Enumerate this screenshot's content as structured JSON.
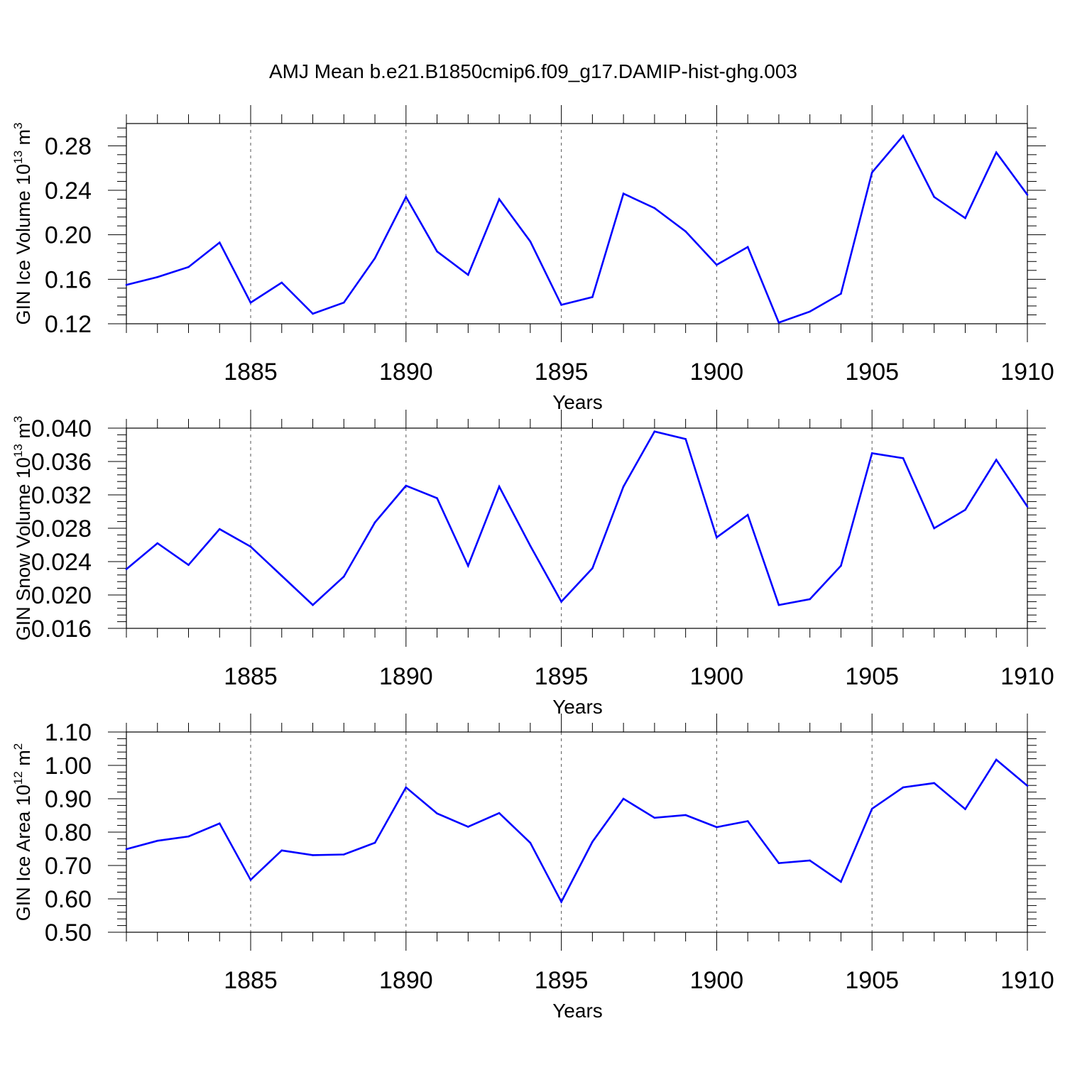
{
  "title": "AMJ Mean b.e21.B1850cmip6.f09_g17.DAMIP-hist-ghg.003",
  "chart_data": [
    {
      "type": "line",
      "ylabel": {
        "base": "GIN Ice Volume 10",
        "exponent": "13",
        "unit": " m",
        "unit_exponent": "3"
      },
      "xlabel": "Years",
      "xlim": [
        1881,
        1910
      ],
      "ylim": [
        0.12,
        0.3
      ],
      "xticks": [
        1885,
        1890,
        1895,
        1900,
        1905,
        1910
      ],
      "yticks": [
        0.12,
        0.16,
        0.2,
        0.24,
        0.28
      ],
      "ytick_labels": [
        "0.12",
        "0.16",
        "0.20",
        "0.24",
        "0.28"
      ],
      "color": "#0000ff",
      "x": [
        1881,
        1882,
        1883,
        1884,
        1885,
        1886,
        1887,
        1888,
        1889,
        1890,
        1891,
        1892,
        1893,
        1894,
        1895,
        1896,
        1897,
        1898,
        1899,
        1900,
        1901,
        1902,
        1903,
        1904,
        1905,
        1906,
        1907,
        1908,
        1909,
        1910
      ],
      "values": [
        0.155,
        0.162,
        0.171,
        0.193,
        0.139,
        0.157,
        0.129,
        0.139,
        0.179,
        0.234,
        0.185,
        0.164,
        0.232,
        0.194,
        0.137,
        0.144,
        0.237,
        0.224,
        0.203,
        0.173,
        0.189,
        0.121,
        0.131,
        0.147,
        0.256,
        0.289,
        0.234,
        0.215,
        0.274,
        0.236
      ]
    },
    {
      "type": "line",
      "ylabel": {
        "base": "GIN Snow Volume 10",
        "exponent": "13",
        "unit": " m",
        "unit_exponent": "3"
      },
      "xlabel": "Years",
      "xlim": [
        1881,
        1910
      ],
      "ylim": [
        0.016,
        0.04
      ],
      "xticks": [
        1885,
        1890,
        1895,
        1900,
        1905,
        1910
      ],
      "yticks": [
        0.016,
        0.02,
        0.024,
        0.028,
        0.032,
        0.036,
        0.04
      ],
      "ytick_labels": [
        "0.016",
        "0.020",
        "0.024",
        "0.028",
        "0.032",
        "0.036",
        "0.040"
      ],
      "color": "#0000ff",
      "x": [
        1881,
        1882,
        1883,
        1884,
        1885,
        1886,
        1887,
        1888,
        1889,
        1890,
        1891,
        1892,
        1893,
        1894,
        1895,
        1896,
        1897,
        1898,
        1899,
        1900,
        1901,
        1902,
        1903,
        1904,
        1905,
        1906,
        1907,
        1908,
        1909,
        1910
      ],
      "values": [
        0.0231,
        0.0262,
        0.0236,
        0.0279,
        0.0258,
        0.0223,
        0.0188,
        0.0222,
        0.0287,
        0.0331,
        0.0316,
        0.0235,
        0.033,
        0.0259,
        0.0192,
        0.0232,
        0.033,
        0.0396,
        0.0387,
        0.0269,
        0.0296,
        0.0188,
        0.0195,
        0.0235,
        0.037,
        0.0364,
        0.028,
        0.0302,
        0.0362,
        0.0306
      ]
    },
    {
      "type": "line",
      "ylabel": {
        "base": "GIN Ice Area 10",
        "exponent": "12",
        "unit": " m",
        "unit_exponent": "2"
      },
      "xlabel": "Years",
      "xlim": [
        1881,
        1910
      ],
      "ylim": [
        0.5,
        1.1
      ],
      "xticks": [
        1885,
        1890,
        1895,
        1900,
        1905,
        1910
      ],
      "yticks": [
        0.5,
        0.6,
        0.7,
        0.8,
        0.9,
        1.0,
        1.1
      ],
      "ytick_labels": [
        "0.50",
        "0.60",
        "0.70",
        "0.80",
        "0.90",
        "1.00",
        "1.10"
      ],
      "color": "#0000ff",
      "x": [
        1881,
        1882,
        1883,
        1884,
        1885,
        1886,
        1887,
        1888,
        1889,
        1890,
        1891,
        1892,
        1893,
        1894,
        1895,
        1896,
        1897,
        1898,
        1899,
        1900,
        1901,
        1902,
        1903,
        1904,
        1905,
        1906,
        1907,
        1908,
        1909,
        1910
      ],
      "values": [
        0.749,
        0.774,
        0.787,
        0.826,
        0.657,
        0.745,
        0.731,
        0.733,
        0.768,
        0.934,
        0.856,
        0.816,
        0.857,
        0.768,
        0.591,
        0.771,
        0.9,
        0.843,
        0.851,
        0.815,
        0.833,
        0.707,
        0.715,
        0.651,
        0.87,
        0.934,
        0.947,
        0.869,
        1.017,
        0.939
      ]
    }
  ]
}
